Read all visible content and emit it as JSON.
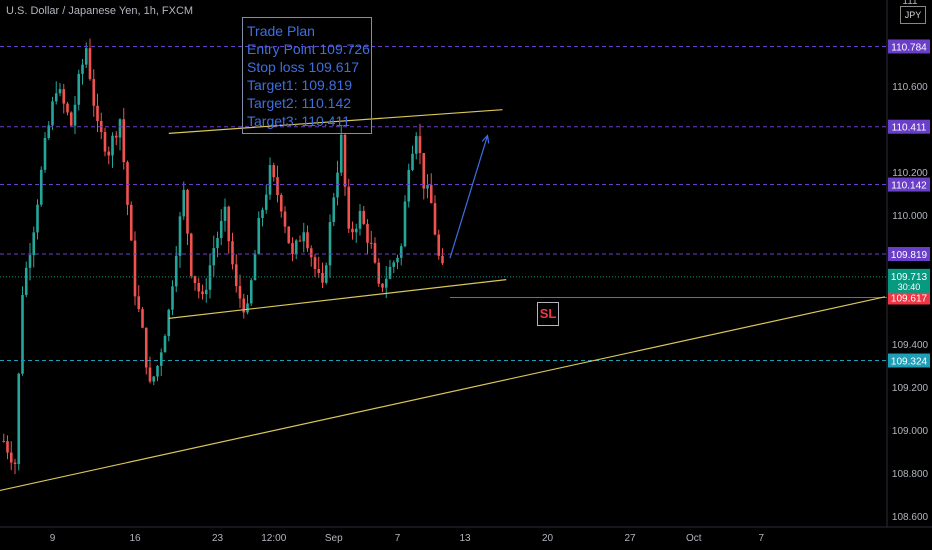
{
  "header": {
    "symbol": "U.S. Dollar / Japanese Yen, 1h, FXCM",
    "currency": "JPY"
  },
  "trade_plan": {
    "lines": [
      "Trade Plan",
      "Entry Point 109.726",
      "Stop loss 109.617",
      "Target1: 109.819",
      "Target2: 110.142",
      "Target3: 110.411"
    ]
  },
  "sl_label": "SL",
  "chart_data": {
    "type": "candlestick",
    "ylim": [
      108.55,
      111.0
    ],
    "yticks": [
      {
        "label": "111",
        "value": 111.0
      },
      {
        "label": "110.600",
        "value": 110.6
      },
      {
        "label": "110.200",
        "value": 110.2
      },
      {
        "label": "110.000",
        "value": 110.0
      },
      {
        "label": "109.400",
        "value": 109.4
      },
      {
        "label": "109.200",
        "value": 109.2
      },
      {
        "label": "109.000",
        "value": 109.0
      },
      {
        "label": "108.800",
        "value": 108.8
      },
      {
        "label": "108.600",
        "value": 108.6
      }
    ],
    "xticks": [
      {
        "label": "9",
        "index": 13
      },
      {
        "label": "16",
        "index": 35
      },
      {
        "label": "23",
        "index": 57
      },
      {
        "label": "12:00",
        "index": 72
      },
      {
        "label": "Sep",
        "index": 88
      },
      {
        "label": "7",
        "index": 105
      },
      {
        "label": "13",
        "index": 123
      },
      {
        "label": "20",
        "index": 145
      },
      {
        "label": "27",
        "index": 167
      },
      {
        "label": "Oct",
        "index": 184
      },
      {
        "label": "7",
        "index": 202
      }
    ],
    "xrange": [
      -1,
      235
    ],
    "price_levels": [
      {
        "label": "110.784",
        "value": 110.784,
        "color": "#6a3fc8",
        "dashed": true
      },
      {
        "label": "110.411",
        "value": 110.411,
        "color": "#6a3fc8",
        "dashed": true
      },
      {
        "label": "110.142",
        "value": 110.142,
        "color": "#6a3fc8",
        "dashed": true
      },
      {
        "label": "109.819",
        "value": 109.819,
        "color": "#6a3fc8",
        "dashed": true
      },
      {
        "label": "109.617",
        "value": 109.617,
        "color": "#f23645",
        "dashed": false
      },
      {
        "label": "109.324",
        "value": 109.324,
        "color": "#1e9fb8",
        "dashed": true
      }
    ],
    "current_price": {
      "label": "109.713",
      "countdown": "30:40",
      "value": 109.713,
      "color": "#089981"
    },
    "trendlines": [
      {
        "from": [
          -1,
          108.72
        ],
        "to": [
          235,
          109.62
        ],
        "color": "#d9c65a"
      },
      {
        "from": [
          44,
          110.38
        ],
        "to": [
          133,
          110.49
        ],
        "color": "#d9c65a"
      },
      {
        "from": [
          44,
          109.52
        ],
        "to": [
          134,
          109.7
        ],
        "color": "#d9c65a"
      }
    ],
    "arrow": {
      "from": [
        119,
        109.8
      ],
      "to": [
        129,
        110.37
      ],
      "color": "#3e6fe0"
    },
    "anchors": [
      [
        0,
        108.95
      ],
      [
        3,
        108.85
      ],
      [
        5,
        109.65
      ],
      [
        8,
        109.95
      ],
      [
        11,
        110.32
      ],
      [
        14,
        110.6
      ],
      [
        18,
        110.42
      ],
      [
        20,
        110.62
      ],
      [
        22,
        110.78
      ],
      [
        25,
        110.4
      ],
      [
        28,
        110.3
      ],
      [
        31,
        110.45
      ],
      [
        33,
        110.05
      ],
      [
        35,
        109.65
      ],
      [
        37,
        109.45
      ],
      [
        39,
        109.2
      ],
      [
        41,
        109.3
      ],
      [
        44,
        109.55
      ],
      [
        46,
        109.85
      ],
      [
        48,
        110.1
      ],
      [
        50,
        109.75
      ],
      [
        53,
        109.6
      ],
      [
        56,
        109.85
      ],
      [
        59,
        110.0
      ],
      [
        62,
        109.65
      ],
      [
        65,
        109.55
      ],
      [
        68,
        109.95
      ],
      [
        71,
        110.2
      ],
      [
        74,
        110.05
      ],
      [
        77,
        109.8
      ],
      [
        80,
        109.95
      ],
      [
        83,
        109.75
      ],
      [
        85,
        109.65
      ],
      [
        88,
        110.1
      ],
      [
        90,
        110.35
      ],
      [
        92,
        109.9
      ],
      [
        95,
        110.0
      ],
      [
        98,
        109.85
      ],
      [
        100,
        109.65
      ],
      [
        103,
        109.75
      ],
      [
        106,
        109.85
      ],
      [
        108,
        110.25
      ],
      [
        110,
        110.4
      ],
      [
        112,
        110.15
      ],
      [
        114,
        110.05
      ],
      [
        116,
        109.8
      ],
      [
        118,
        109.68
      ]
    ]
  }
}
